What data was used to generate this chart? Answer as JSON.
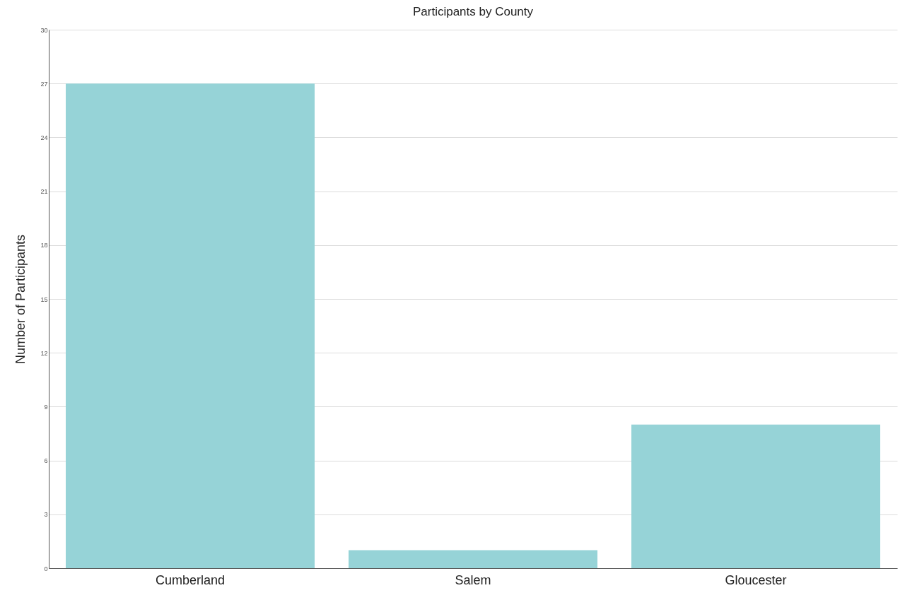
{
  "chart_data": {
    "type": "bar",
    "title": "Participants by County",
    "ylabel": "Number of Participants",
    "categories": [
      "Cumberland",
      "Salem",
      "Gloucester"
    ],
    "values": [
      27,
      1,
      8
    ],
    "color": "#96d3d7",
    "ylim": [
      0,
      30
    ],
    "yticks": [
      0,
      3,
      6,
      9,
      12,
      15,
      18,
      21,
      24,
      27,
      30
    ],
    "grid": "y"
  }
}
